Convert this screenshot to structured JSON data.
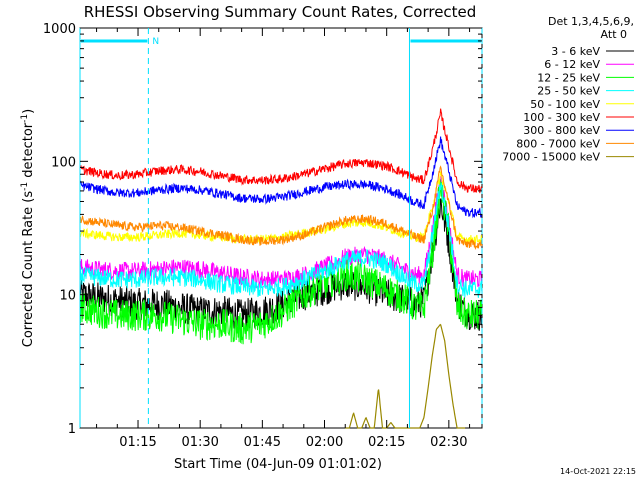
{
  "chart_data": {
    "type": "line",
    "title": "RHESSI Observing Summary Count Rates, Corrected",
    "xlabel": "Start Time (04-Jun-09 01:01:02)",
    "ylabel": "Corrected Count Rate (s",
    "ylabel_sup1": "-1",
    "ylabel_mid": " detector",
    "ylabel_sup2": "-1",
    "ylabel_end": ")",
    "y_scale": "log",
    "ylim": [
      1,
      1000
    ],
    "xlim_minutes": [
      61,
      158
    ],
    "x_tick_minutes": [
      75,
      90,
      105,
      120,
      135,
      150
    ],
    "x_tick_labels": [
      "01:15",
      "01:30",
      "01:45",
      "02:00",
      "02:15",
      "02:30"
    ],
    "y_tick_values": [
      1,
      10,
      100,
      1000
    ],
    "y_tick_labels": [
      "1",
      "10",
      "100",
      "1000"
    ],
    "footer_timestamp": "14-Oct-2021 22:15",
    "legend": {
      "header_line1": "Det 1,3,4,5,6,9,",
      "header_line2": "Att 0"
    },
    "night_flag_label": "N",
    "night_intervals_minutes": [
      [
        61,
        77.5
      ],
      [
        140.5,
        158
      ]
    ],
    "series": [
      {
        "name": "3 - 6 keV",
        "color": "#000000",
        "x": [
          61,
          65,
          70,
          75,
          80,
          85,
          90,
          95,
          100,
          105,
          110,
          115,
          120,
          125,
          130,
          135,
          140,
          142,
          144,
          146,
          148,
          150,
          152,
          154,
          156,
          158
        ],
        "y": [
          10,
          9.5,
          9,
          8.5,
          8.5,
          8,
          7.5,
          7.5,
          7,
          7.5,
          8.5,
          10,
          11,
          12,
          11.5,
          10,
          9,
          8.5,
          9,
          20,
          50,
          25,
          9,
          7.5,
          7,
          7
        ]
      },
      {
        "name": "6 - 12 keV",
        "color": "#ff00ff",
        "x": [
          61,
          65,
          70,
          75,
          80,
          85,
          90,
          95,
          100,
          105,
          110,
          115,
          120,
          125,
          130,
          135,
          140,
          142,
          144,
          146,
          148,
          150,
          152,
          154,
          156,
          158
        ],
        "y": [
          16,
          15.5,
          15,
          15,
          15.5,
          16,
          15.5,
          14.5,
          13.5,
          13,
          13,
          14,
          16,
          19,
          20,
          18,
          15,
          14,
          14,
          30,
          75,
          35,
          14,
          13,
          13,
          13
        ]
      },
      {
        "name": "12 - 25 keV",
        "color": "#00ff00",
        "x": [
          61,
          65,
          70,
          75,
          80,
          85,
          90,
          95,
          100,
          105,
          110,
          115,
          120,
          125,
          130,
          135,
          140,
          142,
          144,
          146,
          148,
          150,
          152,
          154,
          156,
          158
        ],
        "y": [
          8,
          7.5,
          7,
          7,
          7,
          6.5,
          6,
          6,
          5.5,
          6,
          7.5,
          10,
          12,
          14,
          13,
          11,
          9,
          8,
          8,
          20,
          65,
          30,
          8,
          7,
          7,
          7
        ]
      },
      {
        "name": "25 - 50 keV",
        "color": "#00ffff",
        "x": [
          61,
          65,
          70,
          75,
          80,
          85,
          90,
          95,
          100,
          105,
          110,
          115,
          120,
          125,
          130,
          135,
          140,
          142,
          144,
          146,
          148,
          150,
          152,
          154,
          156,
          158
        ],
        "y": [
          14,
          13.5,
          13,
          13,
          13.5,
          13.5,
          13,
          12,
          11.5,
          11,
          11.5,
          13,
          15,
          18,
          19,
          17,
          13,
          12,
          12,
          27,
          70,
          32,
          12,
          11,
          11,
          11
        ]
      },
      {
        "name": "50 - 100 keV",
        "color": "#ffff00",
        "x": [
          61,
          65,
          70,
          75,
          80,
          85,
          90,
          95,
          100,
          105,
          110,
          115,
          120,
          125,
          130,
          135,
          140,
          142,
          144,
          146,
          148,
          150,
          152,
          154,
          156,
          158
        ],
        "y": [
          29,
          28,
          27,
          27,
          28,
          29,
          28,
          27,
          26,
          26,
          27,
          29,
          31,
          34,
          35,
          32,
          28,
          27,
          27,
          45,
          80,
          50,
          27,
          26,
          26,
          26
        ]
      },
      {
        "name": "100 - 300 keV",
        "color": "#ff0000",
        "x": [
          61,
          65,
          70,
          75,
          80,
          85,
          90,
          95,
          100,
          105,
          110,
          115,
          120,
          125,
          130,
          135,
          140,
          142,
          144,
          146,
          148,
          150,
          152,
          154,
          156,
          158
        ],
        "y": [
          87,
          82,
          78,
          80,
          85,
          87,
          84,
          78,
          73,
          72,
          74,
          80,
          88,
          96,
          98,
          92,
          80,
          74,
          72,
          120,
          230,
          130,
          70,
          64,
          62,
          62
        ]
      },
      {
        "name": "300 - 800 keV",
        "color": "#0000ff",
        "x": [
          61,
          65,
          70,
          75,
          80,
          85,
          90,
          95,
          100,
          105,
          110,
          115,
          120,
          125,
          130,
          135,
          140,
          142,
          144,
          146,
          148,
          150,
          152,
          154,
          156,
          158
        ],
        "y": [
          66,
          62,
          58,
          58,
          61,
          63,
          61,
          57,
          53,
          52,
          54,
          59,
          64,
          67,
          67,
          62,
          53,
          49,
          47,
          80,
          145,
          85,
          46,
          42,
          41,
          41
        ]
      },
      {
        "name": "800 - 7000 keV",
        "color": "#ff8800",
        "x": [
          61,
          65,
          70,
          75,
          80,
          85,
          90,
          95,
          100,
          105,
          110,
          115,
          120,
          125,
          130,
          135,
          140,
          142,
          144,
          146,
          148,
          150,
          152,
          154,
          156,
          158
        ],
        "y": [
          37,
          35,
          33,
          32,
          33,
          32,
          30,
          28,
          26,
          25,
          26,
          28,
          32,
          36,
          37,
          34,
          29,
          27,
          26,
          42,
          90,
          48,
          26,
          24,
          24,
          24
        ]
      },
      {
        "name": "7000 - 15000 keV",
        "color": "#998800",
        "x": [
          125,
          126,
          127,
          128,
          129,
          130,
          131,
          132,
          133,
          134,
          135,
          136,
          137,
          138,
          139,
          140,
          141,
          142,
          143,
          144,
          145,
          146,
          147,
          148,
          149,
          150,
          151,
          152,
          153,
          154
        ],
        "y": [
          1,
          1,
          1.3,
          1,
          1,
          1.2,
          1,
          1,
          2,
          1,
          1,
          1.1,
          1,
          1,
          1,
          1,
          1,
          1,
          1,
          1.2,
          2,
          3.5,
          5.5,
          6,
          4.5,
          2.5,
          1.5,
          1,
          1,
          1
        ]
      }
    ]
  }
}
